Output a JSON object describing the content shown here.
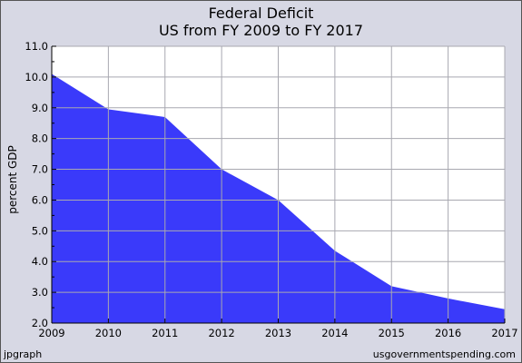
{
  "chart_data": {
    "type": "area",
    "title": "Federal Deficit",
    "subtitle": "US from FY 2009 to FY 2017",
    "xlabel": "",
    "ylabel": "percent GDP",
    "x": [
      2009,
      2010,
      2011,
      2012,
      2013,
      2014,
      2015,
      2016,
      2017
    ],
    "xlim": [
      2009,
      2017
    ],
    "ylim": [
      2.0,
      11.0
    ],
    "yticks": [
      "2.0",
      "3.0",
      "4.0",
      "5.0",
      "6.0",
      "7.0",
      "8.0",
      "9.0",
      "10.0",
      "11.0"
    ],
    "xticks": [
      "2009",
      "2010",
      "2011",
      "2012",
      "2013",
      "2014",
      "2015",
      "2016",
      "2017"
    ],
    "series": [
      {
        "values": [
          10.1,
          8.95,
          8.7,
          7.0,
          6.0,
          4.35,
          3.2,
          2.8,
          2.45
        ],
        "color": "#3a3afa"
      }
    ],
    "grid": true,
    "background": "#ffffff",
    "frame_color": "#d7d8e4"
  },
  "footer": {
    "left": "jpgraph",
    "right": "usgovernmentspending.com"
  }
}
